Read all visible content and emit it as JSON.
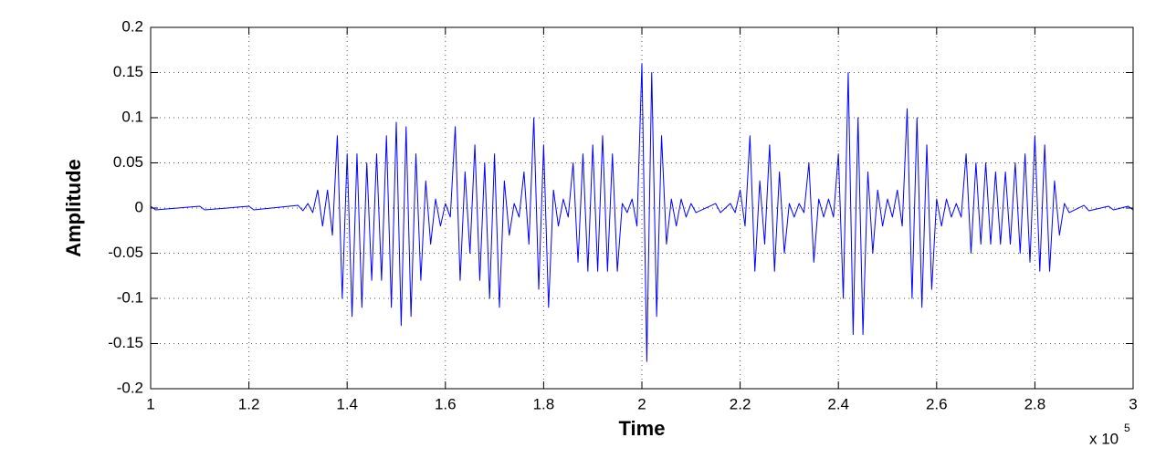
{
  "chart_data": {
    "type": "line",
    "xlabel": "Time",
    "ylabel": "Amplitude",
    "x_multiplier": {
      "base": "x 10",
      "exponent": "5"
    },
    "xlim": [
      100000,
      300000
    ],
    "xticks": [
      {
        "value": 100000,
        "label": "1"
      },
      {
        "value": 120000,
        "label": "1.2"
      },
      {
        "value": 140000,
        "label": "1.4"
      },
      {
        "value": 160000,
        "label": "1.6"
      },
      {
        "value": 180000,
        "label": "1.8"
      },
      {
        "value": 200000,
        "label": "2"
      },
      {
        "value": 220000,
        "label": "2.2"
      },
      {
        "value": 240000,
        "label": "2.4"
      },
      {
        "value": 260000,
        "label": "2.6"
      },
      {
        "value": 280000,
        "label": "2.8"
      },
      {
        "value": 300000,
        "label": "3"
      }
    ],
    "ylim": [
      -0.2,
      0.2
    ],
    "yticks": [
      -0.2,
      -0.15,
      -0.1,
      -0.05,
      0,
      0.05,
      0.1,
      0.15,
      0.2
    ],
    "grid": true,
    "series": [
      {
        "color": "#0000ff",
        "x": [
          100000,
          101000,
          110000,
          111000,
          120000,
          121000,
          130000,
          131000,
          132000,
          133000,
          134000,
          135000,
          136000,
          137000,
          138000,
          139000,
          140000,
          141000,
          142000,
          143000,
          144000,
          145000,
          146000,
          147000,
          148000,
          149000,
          150000,
          151000,
          152000,
          153000,
          154000,
          155000,
          156000,
          157000,
          158000,
          159000,
          160000,
          161000,
          162000,
          163000,
          164000,
          165000,
          166000,
          167000,
          168000,
          169000,
          170000,
          171000,
          172000,
          173000,
          174000,
          175000,
          176000,
          177000,
          178000,
          179000,
          180000,
          181000,
          182000,
          183000,
          184000,
          185000,
          186000,
          187000,
          188000,
          189000,
          190000,
          191000,
          192000,
          193000,
          194000,
          195000,
          196000,
          197000,
          198000,
          199000,
          200000,
          201000,
          202000,
          203000,
          204000,
          205000,
          206000,
          207000,
          208000,
          209000,
          210000,
          211000,
          215000,
          216000,
          218000,
          219000,
          220000,
          221000,
          222000,
          223000,
          224000,
          225000,
          226000,
          227000,
          228000,
          229000,
          230000,
          231000,
          232000,
          233000,
          234000,
          235000,
          236000,
          237000,
          238000,
          239000,
          240000,
          241000,
          242000,
          243000,
          244000,
          245000,
          246000,
          247000,
          248000,
          249000,
          250000,
          251000,
          252000,
          253000,
          254000,
          255000,
          256000,
          257000,
          258000,
          259000,
          260000,
          261000,
          262000,
          263000,
          264000,
          265000,
          266000,
          267000,
          268000,
          269000,
          270000,
          271000,
          272000,
          273000,
          274000,
          275000,
          276000,
          277000,
          278000,
          279000,
          280000,
          281000,
          282000,
          283000,
          284000,
          285000,
          286000,
          287000,
          290000,
          291000,
          295000,
          296000,
          299000,
          300000
        ],
        "values": [
          0.002,
          -0.002,
          0.002,
          -0.002,
          0.002,
          -0.002,
          0.003,
          -0.003,
          0.005,
          -0.005,
          0.02,
          -0.02,
          0.02,
          -0.03,
          0.08,
          -0.1,
          0.06,
          -0.12,
          0.06,
          -0.11,
          0.05,
          -0.08,
          0.06,
          -0.08,
          0.08,
          -0.11,
          0.095,
          -0.13,
          0.09,
          -0.12,
          0.06,
          -0.08,
          0.03,
          -0.04,
          0.01,
          -0.02,
          0.005,
          -0.01,
          0.09,
          -0.08,
          0.04,
          -0.05,
          0.07,
          -0.08,
          0.05,
          -0.1,
          0.06,
          -0.11,
          0.03,
          -0.03,
          0.005,
          -0.01,
          0.04,
          -0.04,
          0.1,
          -0.09,
          0.07,
          -0.11,
          0.02,
          -0.02,
          0.01,
          -0.01,
          0.05,
          -0.06,
          0.06,
          -0.07,
          0.07,
          -0.07,
          0.08,
          -0.07,
          0.06,
          -0.07,
          0.005,
          -0.005,
          0.01,
          -0.02,
          0.16,
          -0.17,
          0.15,
          -0.12,
          0.08,
          -0.04,
          0.01,
          -0.02,
          0.01,
          -0.01,
          0.005,
          -0.005,
          0.005,
          -0.005,
          0.005,
          -0.005,
          0.02,
          -0.02,
          0.08,
          -0.07,
          0.03,
          -0.04,
          0.07,
          -0.07,
          0.04,
          -0.05,
          0.005,
          -0.01,
          0.005,
          -0.005,
          0.05,
          -0.06,
          0.01,
          -0.01,
          0.01,
          -0.01,
          0.06,
          -0.1,
          0.15,
          -0.14,
          0.1,
          -0.14,
          0.04,
          -0.05,
          0.02,
          -0.02,
          0.01,
          -0.01,
          0.02,
          -0.02,
          0.11,
          -0.1,
          0.1,
          -0.11,
          0.07,
          -0.09,
          0.01,
          -0.02,
          0.01,
          -0.01,
          0.005,
          -0.01,
          0.06,
          -0.05,
          0.05,
          -0.04,
          0.05,
          -0.04,
          0.04,
          -0.04,
          0.04,
          -0.04,
          0.05,
          -0.05,
          0.06,
          -0.06,
          0.08,
          -0.07,
          0.07,
          -0.07,
          0.03,
          -0.03,
          0.005,
          -0.005,
          0.003,
          -0.003,
          0.002,
          -0.002,
          0.002,
          -0.002
        ]
      }
    ]
  }
}
